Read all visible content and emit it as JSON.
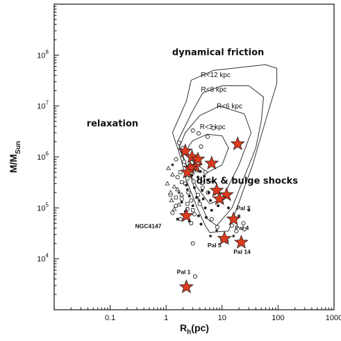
{
  "chart_data": {
    "type": "scatter",
    "xscale": "log",
    "yscale": "log",
    "xlim": [
      0.01,
      1000
    ],
    "ylim": [
      1000,
      1000000000
    ],
    "x_ticks": [
      {
        "value": 0.1,
        "label": "0.1"
      },
      {
        "value": 1,
        "label": "1"
      },
      {
        "value": 10,
        "label": "10"
      },
      {
        "value": 100,
        "label": "100"
      },
      {
        "value": 1000,
        "label": "1000"
      }
    ],
    "y_ticks": [
      {
        "value": 10000,
        "base": "10",
        "exp": "4"
      },
      {
        "value": 100000,
        "base": "10",
        "exp": "5"
      },
      {
        "value": 1000000,
        "base": "10",
        "exp": "6"
      },
      {
        "value": 10000000,
        "base": "10",
        "exp": "7"
      },
      {
        "value": 100000000,
        "base": "10",
        "exp": "8"
      }
    ],
    "xlabel": {
      "main": "R",
      "sub": "h",
      "rest": "(pc)"
    },
    "ylabel": {
      "main": "M/M",
      "sub": "Sun"
    },
    "region_labels": [
      {
        "text": "dynamical friction",
        "x": 8.5,
        "y": 100000000
      },
      {
        "text": "relaxation",
        "x": 0.11,
        "y": 4000000
      },
      {
        "text": "disk & bulge shocks",
        "x": 28,
        "y": 300000
      }
    ],
    "contours": [
      {
        "label": "R<12 kpc",
        "label_x": 4.2,
        "label_y": 37000000,
        "path": [
          [
            2.3,
            12500000
          ],
          [
            1.3,
            3000000
          ],
          [
            1.8,
            1000000
          ],
          [
            2.3,
            350000
          ],
          [
            3.6,
            100000
          ],
          [
            5,
            45000
          ],
          [
            6,
            33000
          ],
          [
            13,
            35000
          ],
          [
            35,
            700000
          ],
          [
            65,
            7000000
          ],
          [
            95,
            28000000
          ],
          [
            95,
            55000000
          ],
          [
            60,
            65000000
          ],
          [
            7,
            50000000
          ],
          [
            2.8,
            32000000
          ],
          [
            2.3,
            12500000
          ]
        ]
      },
      {
        "label": "R<8 kpc",
        "label_x": 4.2,
        "label_y": 19000000,
        "path": [
          [
            2.8,
            7000000
          ],
          [
            1.6,
            2000000
          ],
          [
            2.3,
            700000
          ],
          [
            3.6,
            170000
          ],
          [
            5.5,
            60000
          ],
          [
            8,
            45000
          ],
          [
            15,
            100000
          ],
          [
            40,
            1500000
          ],
          [
            50,
            5000000
          ],
          [
            55,
            15000000
          ],
          [
            30,
            25000000
          ],
          [
            10,
            25000000
          ],
          [
            4.5,
            18000000
          ],
          [
            2.8,
            7000000
          ]
        ]
      },
      {
        "label": "R<6 kpc",
        "label_x": 8,
        "label_y": 9000000,
        "path": [
          [
            2.2,
            3000000
          ],
          [
            1.7,
            1500000
          ],
          [
            2.4,
            600000
          ],
          [
            3.6,
            250000
          ],
          [
            6,
            120000
          ],
          [
            10,
            150000
          ],
          [
            20,
            700000
          ],
          [
            33,
            3000000
          ],
          [
            25,
            7000000
          ],
          [
            9,
            10000000
          ],
          [
            4,
            6500000
          ],
          [
            2.2,
            3000000
          ]
        ]
      },
      {
        "label": "R<3 kpc",
        "label_x": 4,
        "label_y": 3500000,
        "path": [
          [
            2.6,
            1700000
          ],
          [
            2.2,
            1100000
          ],
          [
            3.3,
            750000
          ],
          [
            5.5,
            500000
          ],
          [
            10,
            700000
          ],
          [
            13,
            1500000
          ],
          [
            10,
            2600000
          ],
          [
            5.5,
            2800000
          ],
          [
            3,
            2100000
          ],
          [
            2.6,
            1700000
          ]
        ]
      }
    ],
    "series": [
      {
        "marker": "star",
        "color": "#dd3a1e",
        "points": [
          [
            2.2,
            1300000
          ],
          [
            2.9,
            1000000
          ],
          [
            3.3,
            650000
          ],
          [
            2.7,
            600000
          ],
          [
            2.4,
            500000
          ],
          [
            3.7,
            900000
          ],
          [
            6.5,
            750000
          ],
          [
            19,
            1800000
          ],
          [
            8,
            220000
          ],
          [
            12,
            180000
          ],
          [
            9,
            150000
          ],
          [
            2.3,
            70000
          ],
          [
            16,
            60000
          ],
          [
            11,
            25000
          ],
          [
            22,
            21000
          ],
          [
            2.3,
            2800
          ]
        ]
      },
      {
        "marker": "open-circle",
        "color": "#222222",
        "points": [
          [
            3,
            3300000
          ],
          [
            3.8,
            2900000
          ],
          [
            5.5,
            2500000
          ],
          [
            1.7,
            1900000
          ],
          [
            7,
            3700000
          ],
          [
            2,
            1500000
          ],
          [
            4.2,
            1600000
          ],
          [
            1.5,
            900000
          ],
          [
            2.1,
            800000
          ],
          [
            5,
            500000
          ],
          [
            1.6,
            400000
          ],
          [
            2.2,
            300000
          ],
          [
            3.1,
            330000
          ],
          [
            4.5,
            250000
          ],
          [
            2.5,
            200000
          ],
          [
            1.2,
            180000
          ],
          [
            3.7,
            180000
          ],
          [
            5.6,
            200000
          ],
          [
            1.9,
            150000
          ],
          [
            2.8,
            140000
          ],
          [
            1.5,
            110000
          ],
          [
            4,
            120000
          ],
          [
            2.4,
            95000
          ],
          [
            1.3,
            80000
          ],
          [
            3.2,
            75000
          ],
          [
            1.8,
            60000
          ],
          [
            2.8,
            50000
          ],
          [
            6.5,
            60000
          ],
          [
            15,
            45000
          ],
          [
            24,
            50000
          ],
          [
            12,
            22000
          ],
          [
            10,
            24000
          ],
          [
            3,
            20000
          ],
          [
            3.3,
            4500
          ],
          [
            8.2,
            42000
          ],
          [
            18,
            35000
          ],
          [
            25,
            38000
          ]
        ]
      },
      {
        "marker": "filled-dot",
        "color": "#222222",
        "points": [
          [
            2.6,
            700000
          ],
          [
            3.4,
            560000
          ],
          [
            4.1,
            520000
          ],
          [
            2.9,
            440000
          ],
          [
            3.7,
            400000
          ],
          [
            4.8,
            420000
          ],
          [
            5.5,
            350000
          ],
          [
            6.8,
            330000
          ],
          [
            2.3,
            280000
          ],
          [
            3.2,
            250000
          ],
          [
            4.4,
            220000
          ],
          [
            5.8,
            200000
          ],
          [
            7.5,
            190000
          ],
          [
            2.6,
            170000
          ],
          [
            3.5,
            160000
          ],
          [
            4.6,
            150000
          ],
          [
            6.2,
            140000
          ],
          [
            1.9,
            130000
          ],
          [
            3,
            110000
          ],
          [
            5,
            100000
          ],
          [
            6.5,
            90000
          ],
          [
            2.2,
            85000
          ],
          [
            3.8,
            70000
          ],
          [
            1.6,
            60000
          ],
          [
            2.6,
            55000
          ],
          [
            4.2,
            48000
          ],
          [
            13,
            100000
          ],
          [
            10,
            130000
          ],
          [
            8.5,
            110000
          ],
          [
            5.2,
            65000
          ]
        ]
      },
      {
        "marker": "open-triangle",
        "color": "#222222",
        "points": [
          [
            1.1,
            600000
          ],
          [
            1.3,
            450000
          ],
          [
            1.05,
            300000
          ],
          [
            1.4,
            260000
          ],
          [
            1.2,
            200000
          ],
          [
            1.6,
            230000
          ],
          [
            1.25,
            140000
          ],
          [
            1.9,
            180000
          ],
          [
            1.4,
            95000
          ],
          [
            1.7,
            115000
          ]
        ]
      },
      {
        "marker": "open-square",
        "color": "#222222",
        "points": [
          [
            1.8,
            500000
          ],
          [
            2.4,
            380000
          ],
          [
            1.9,
            320000
          ],
          [
            1.5,
            160000
          ],
          [
            2.4,
            120000
          ],
          [
            3,
            90000
          ],
          [
            3.6,
            550000
          ],
          [
            4.4,
            310000
          ]
        ]
      },
      {
        "marker": "small-star",
        "color": "#222222",
        "points": [
          [
            1.3,
            700000
          ],
          [
            2.4,
            230000
          ],
          [
            1.7,
            200000
          ],
          [
            3.9,
            140000
          ],
          [
            2.1,
            70000
          ],
          [
            6.2,
            28000
          ],
          [
            30,
            90000
          ],
          [
            20,
            70000
          ],
          [
            16,
            28000
          ],
          [
            8,
            36000
          ]
        ]
      }
    ],
    "annotations": [
      {
        "text": "Pal 3",
        "x": 18,
        "y": 90000
      },
      {
        "text": "Pal 4",
        "x": 17,
        "y": 37000
      },
      {
        "text": "Pal 5",
        "x": 5.5,
        "y": 17000
      },
      {
        "text": "Pal 14",
        "x": 16,
        "y": 12500
      },
      {
        "text": "NGC4147",
        "x": 0.28,
        "y": 40000
      },
      {
        "text": "Pal 1",
        "x": 1.55,
        "y": 5000
      }
    ]
  }
}
